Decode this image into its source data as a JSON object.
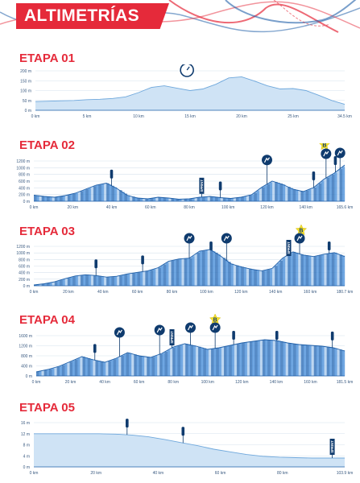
{
  "header": {
    "title": "ALTIMETRÍAS"
  },
  "colors": {
    "accent": "#e52a3a",
    "profile_fill": "#4a90d9",
    "profile_light": "#cfe3f5",
    "profile_dark": "#1f5fa8",
    "marker_dark": "#0f3b6e",
    "bonus_yellow": "#f7e12a"
  },
  "stages": [
    {
      "title": "ETAPA 01",
      "kind": "itt",
      "y_ticks": [
        "0 m",
        "50 m",
        "100 m",
        "150 m",
        "200 m"
      ],
      "x_ticks": [
        "0 km",
        "5 km",
        "10 km",
        "15 km",
        "20 km",
        "25 km",
        "34.5 km"
      ],
      "markers": [
        {
          "type": "time-trial-icon",
          "label": "ITT",
          "km_frac": 0.49
        }
      ]
    },
    {
      "title": "ETAPA 02",
      "kind": "road",
      "y_ticks": [
        "0 m",
        "200 m",
        "400 m",
        "600 m",
        "800 m",
        "1000 m",
        "1200 m"
      ],
      "x_ticks": [
        "0 km",
        "20 km",
        "40 km",
        "60 km",
        "80 km",
        "100 km",
        "120 km",
        "140 km",
        "165.6 km"
      ],
      "markers": [
        {
          "type": "supply-flag",
          "km_frac": 0.25
        },
        {
          "type": "sprint",
          "label": "SPRINT",
          "km_frac": 0.54
        },
        {
          "type": "supply-flag",
          "km_frac": 0.6
        },
        {
          "type": "climb-icon",
          "km_frac": 0.75
        },
        {
          "type": "supply-flag",
          "km_frac": 0.9
        },
        {
          "type": "bonus-icon",
          "label": "B",
          "km_frac": 0.935
        },
        {
          "type": "climb-icon",
          "km_frac": 0.94
        },
        {
          "type": "supply-flag",
          "km_frac": 0.97
        },
        {
          "type": "climb-icon",
          "km_frac": 0.985
        }
      ]
    },
    {
      "title": "ETAPA 03",
      "kind": "road",
      "y_ticks": [
        "0 m",
        "200 m",
        "400 m",
        "600 m",
        "800 m",
        "1000 m",
        "1200 m"
      ],
      "x_ticks": [
        "0 km",
        "20 km",
        "40 km",
        "60 km",
        "80 km",
        "100 km",
        "120 km",
        "140 km",
        "160 km",
        "180.7 km"
      ],
      "markers": [
        {
          "type": "supply-flag",
          "km_frac": 0.2
        },
        {
          "type": "supply-flag",
          "km_frac": 0.35
        },
        {
          "type": "climb-icon",
          "km_frac": 0.5
        },
        {
          "type": "supply-flag",
          "km_frac": 0.57
        },
        {
          "type": "climb-icon",
          "km_frac": 0.62
        },
        {
          "type": "sprint",
          "label": "SPRINT",
          "km_frac": 0.82
        },
        {
          "type": "bonus-icon",
          "label": "B",
          "km_frac": 0.86
        },
        {
          "type": "climb-icon",
          "km_frac": 0.855
        },
        {
          "type": "supply-flag",
          "km_frac": 0.95
        }
      ]
    },
    {
      "title": "ETAPA 04",
      "kind": "road",
      "y_ticks": [
        "0 m",
        "400 m",
        "800 m",
        "1200 m",
        "1600 m"
      ],
      "x_ticks": [
        "0 km",
        "20 km",
        "40 km",
        "60 km",
        "80 km",
        "100 km",
        "120 km",
        "140 km",
        "160 km",
        "181.5 km"
      ],
      "markers": [
        {
          "type": "supply-flag",
          "km_frac": 0.19
        },
        {
          "type": "climb-icon",
          "km_frac": 0.27
        },
        {
          "type": "climb-icon",
          "km_frac": 0.4
        },
        {
          "type": "sprint",
          "label": "SPRINT",
          "km_frac": 0.44
        },
        {
          "type": "climb-icon",
          "km_frac": 0.5
        },
        {
          "type": "bonus-icon",
          "label": "B",
          "km_frac": 0.58
        },
        {
          "type": "climb-icon",
          "km_frac": 0.58
        },
        {
          "type": "supply-flag",
          "km_frac": 0.64
        },
        {
          "type": "supply-flag",
          "km_frac": 0.78
        },
        {
          "type": "supply-flag",
          "km_frac": 0.96
        }
      ]
    },
    {
      "title": "ETAPA 05",
      "kind": "flat",
      "y_ticks": [
        "0 m",
        "4 m",
        "8 m",
        "12 m",
        "16 m"
      ],
      "x_ticks": [
        "0 km",
        "20 km",
        "40 km",
        "60 km",
        "80 km",
        "103.9 km"
      ],
      "markers": [
        {
          "type": "supply-flag",
          "km_frac": 0.3
        },
        {
          "type": "supply-flag",
          "km_frac": 0.48
        },
        {
          "type": "sprint",
          "label": "SPRINT",
          "km_frac": 0.96
        }
      ]
    }
  ]
}
